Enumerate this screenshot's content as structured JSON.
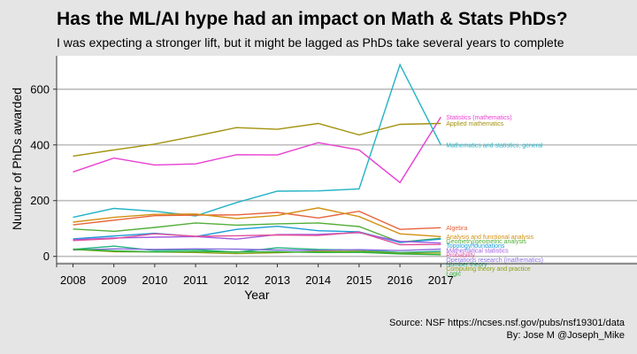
{
  "title": "Has the ML/AI hype had an impact on Math & Stats PhDs?",
  "subtitle": "I was expecting a stronger lift, but it might be lagged as PhDs take several years to complete",
  "caption_source": "Source: NSF https://ncses.nsf.gov/pubs/nsf19301/data",
  "caption_author": "By: Jose M  @Joseph_Mike",
  "chart_data": {
    "type": "line",
    "xlabel": "Year",
    "ylabel": "Number of PhDs awarded",
    "x": [
      2008,
      2009,
      2010,
      2011,
      2012,
      2013,
      2014,
      2015,
      2016,
      2017
    ],
    "xlim": [
      2007.6,
      2021.8
    ],
    "ylim": [
      -20,
      720
    ],
    "yticks": [
      0,
      200,
      400,
      600
    ],
    "grid": "horizontal",
    "legend": "labels at line ends",
    "series": [
      {
        "name": "Statistics (mathematics)",
        "color": "#e83fd2",
        "values": [
          303,
          353,
          328,
          332,
          365,
          364,
          408,
          382,
          265,
          500
        ]
      },
      {
        "name": "Applied mathematics",
        "color": "#a3920e",
        "values": [
          360,
          382,
          403,
          432,
          462,
          456,
          477,
          436,
          474,
          477
        ]
      },
      {
        "name": "Mathematics and statistics, general",
        "color": "#22b3c5",
        "values": [
          140,
          172,
          162,
          145,
          193,
          234,
          235,
          242,
          688,
          400
        ]
      },
      {
        "name": "Algebra",
        "color": "#e8643c",
        "values": [
          113,
          130,
          146,
          148,
          149,
          158,
          138,
          162,
          97,
          103
        ]
      },
      {
        "name": "Analysis and functional analysis",
        "color": "#d29012",
        "values": [
          123,
          140,
          151,
          152,
          136,
          147,
          174,
          143,
          81,
          71
        ]
      },
      {
        "name": "Geometry/geometric analysis",
        "color": "#52ae3a",
        "values": [
          98,
          90,
          104,
          120,
          112,
          117,
          120,
          107,
          51,
          65
        ]
      },
      {
        "name": "Topology/foundations",
        "color": "#1a9cd8",
        "values": [
          63,
          73,
          83,
          71,
          97,
          108,
          92,
          88,
          50,
          62
        ]
      },
      {
        "name": "Number theory",
        "color": "#22b382",
        "values": [
          25,
          37,
          21,
          24,
          15,
          31,
          25,
          23,
          14,
          18
        ]
      },
      {
        "name": "Mathematical statistics",
        "color": "#a25ce0",
        "values": [
          60,
          66,
          69,
          71,
          62,
          78,
          79,
          85,
          54,
          48
        ]
      },
      {
        "name": "Probability",
        "color": "#e0509a",
        "values": [
          57,
          64,
          81,
          72,
          74,
          77,
          75,
          87,
          42,
          43
        ]
      },
      {
        "name": "Operations research (mathematics)",
        "color": "#8a6fe0",
        "values": [
          23,
          27,
          25,
          27,
          26,
          23,
          22,
          24,
          21,
          26
        ]
      },
      {
        "name": "Computing theory and practice",
        "color": "#8aa016",
        "values": [
          25,
          17,
          16,
          14,
          10,
          13,
          18,
          18,
          11,
          12
        ]
      },
      {
        "name": "Logic",
        "color": "#2cb13c",
        "values": [
          26,
          20,
          16,
          18,
          16,
          17,
          14,
          15,
          9,
          6
        ]
      }
    ],
    "end_labels": [
      {
        "text": "Statistics (mathematics)",
        "color": "#e83fd2"
      },
      {
        "text": "Applied mathematics",
        "color": "#a3920e"
      },
      {
        "text": "Mathematics and statistics, general",
        "color": "#22b3c5"
      },
      {
        "text": "Algebra",
        "color": "#e8643c"
      },
      {
        "text": "Analysis and functional analysis",
        "color": "#d29012"
      },
      {
        "text": "Geometry/geometric analysis",
        "color": "#52ae3a"
      },
      {
        "text": "Topology/foundations",
        "color": "#1a9cd8"
      },
      {
        "text": "Number theory",
        "color": "#22b382"
      },
      {
        "text": "Mathematical statistics",
        "color": "#a25ce0"
      },
      {
        "text": "Probability",
        "color": "#e0509a"
      },
      {
        "text": "Operations research (mathematics)",
        "color": "#8a6fe0"
      },
      {
        "text": "Computing theory and practice",
        "color": "#8aa016"
      },
      {
        "text": "Logic",
        "color": "#2cb13c"
      }
    ]
  }
}
